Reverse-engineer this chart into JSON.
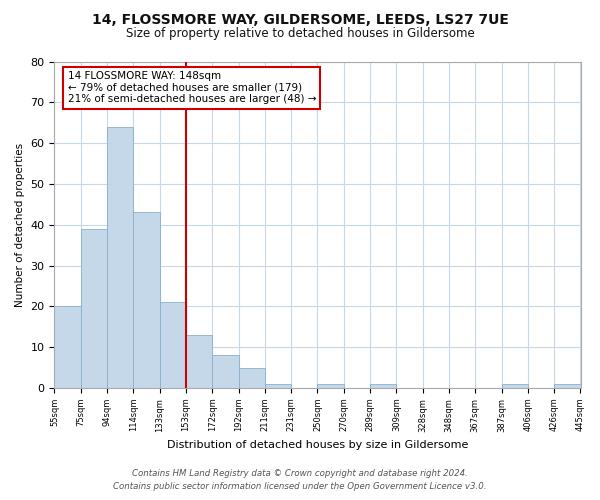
{
  "title": "14, FLOSSMORE WAY, GILDERSOME, LEEDS, LS27 7UE",
  "subtitle": "Size of property relative to detached houses in Gildersome",
  "bar_values": [
    20,
    39,
    64,
    43,
    21,
    13,
    8,
    5,
    1,
    0,
    1,
    0,
    1,
    0,
    0,
    0,
    0,
    1,
    0,
    1
  ],
  "bin_labels": [
    "55sqm",
    "75sqm",
    "94sqm",
    "114sqm",
    "133sqm",
    "153sqm",
    "172sqm",
    "192sqm",
    "211sqm",
    "231sqm",
    "250sqm",
    "270sqm",
    "289sqm",
    "309sqm",
    "328sqm",
    "348sqm",
    "367sqm",
    "387sqm",
    "406sqm",
    "426sqm",
    "445sqm"
  ],
  "bar_color": "#c5d8ea",
  "bar_edge_color": "#8ab0cc",
  "vline_x": 4.5,
  "vline_color": "#cc0000",
  "annotation_line1": "14 FLOSSMORE WAY: 148sqm",
  "annotation_line2": "← 79% of detached houses are smaller (179)",
  "annotation_line3": "21% of semi-detached houses are larger (48) →",
  "annotation_box_color": "#ffffff",
  "annotation_box_edge": "#cc0000",
  "xlabel": "Distribution of detached houses by size in Gildersome",
  "ylabel": "Number of detached properties",
  "ylim": [
    0,
    80
  ],
  "yticks": [
    0,
    10,
    20,
    30,
    40,
    50,
    60,
    70,
    80
  ],
  "footer_line1": "Contains HM Land Registry data © Crown copyright and database right 2024.",
  "footer_line2": "Contains public sector information licensed under the Open Government Licence v3.0.",
  "bg_color": "#ffffff",
  "plot_bg_color": "#ffffff",
  "grid_color": "#c8d8e8"
}
